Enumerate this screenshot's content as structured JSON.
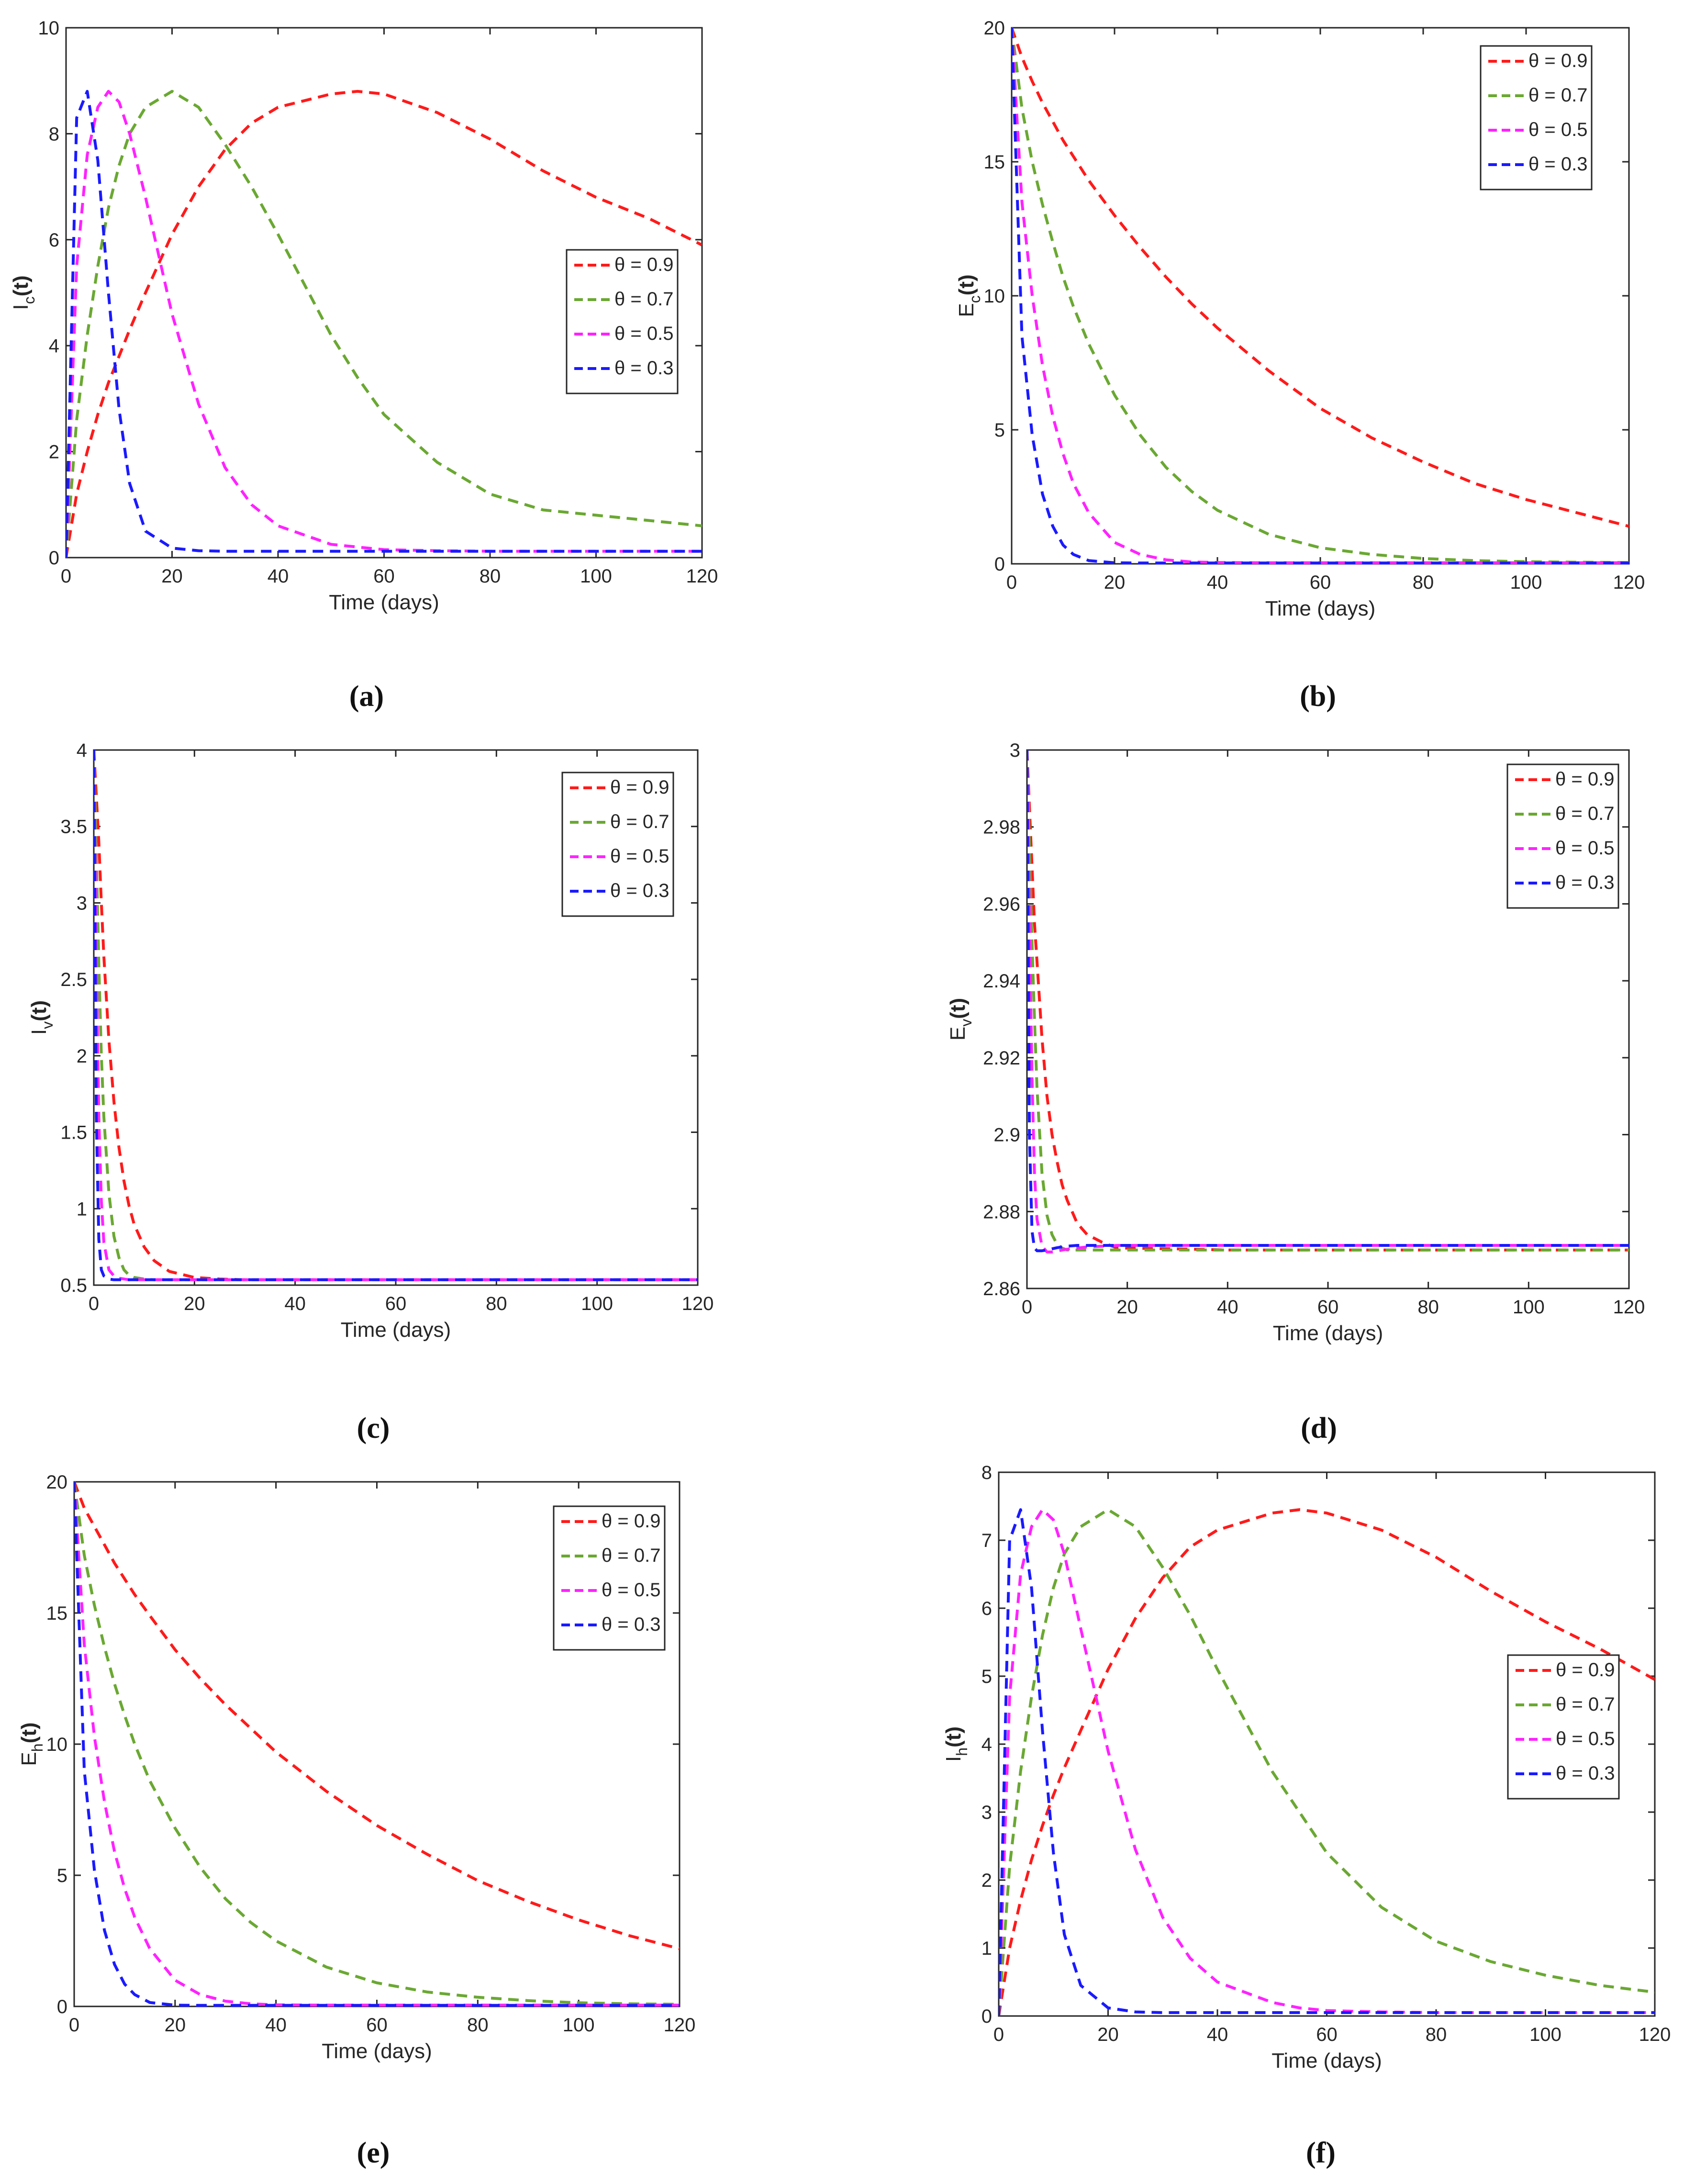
{
  "figure": {
    "panels_count": 6,
    "x_axis_label": "Time (days)",
    "legend_labels": [
      "θ = 0.9",
      "θ = 0.7",
      "θ = 0.5",
      "θ = 0.3"
    ],
    "series_colors": [
      "#ff1a1a",
      "#6aa832",
      "#ff22ff",
      "#1a1aff"
    ]
  },
  "chart_data": [
    {
      "type": "line",
      "panel": "a",
      "caption": "(a)",
      "ylabel_main": "I",
      "ylabel_sub": "c",
      "ylabel_tail": "(t)",
      "xlabel": "Time (days)",
      "xlim": [
        0,
        120
      ],
      "ylim": [
        0,
        10
      ],
      "xticks": [
        0,
        20,
        40,
        60,
        80,
        100,
        120
      ],
      "yticks": [
        0,
        2,
        4,
        6,
        8,
        10
      ],
      "legend_position": "right-middle",
      "x": [
        0,
        2,
        4,
        6,
        8,
        10,
        12,
        15,
        20,
        25,
        30,
        35,
        40,
        50,
        55,
        60,
        70,
        80,
        90,
        100,
        110,
        120
      ],
      "series": [
        {
          "name": "θ = 0.9",
          "color": "#ff1a1a",
          "values": [
            0,
            1.2,
            2.0,
            2.7,
            3.3,
            3.8,
            4.3,
            5.0,
            6.1,
            7.0,
            7.7,
            8.2,
            8.5,
            8.75,
            8.8,
            8.75,
            8.4,
            7.9,
            7.3,
            6.8,
            6.4,
            5.9
          ]
        },
        {
          "name": "θ = 0.7",
          "color": "#6aa832",
          "values": [
            0,
            2.6,
            4.2,
            5.5,
            6.6,
            7.4,
            8.0,
            8.5,
            8.8,
            8.5,
            7.8,
            7.0,
            6.1,
            4.2,
            3.4,
            2.7,
            1.8,
            1.2,
            0.9,
            0.8,
            0.7,
            0.6
          ]
        },
        {
          "name": "θ = 0.5",
          "color": "#ff22ff",
          "values": [
            0,
            5.5,
            7.6,
            8.5,
            8.8,
            8.6,
            8.0,
            6.8,
            4.6,
            2.9,
            1.7,
            1.0,
            0.6,
            0.25,
            0.2,
            0.15,
            0.13,
            0.12,
            0.12,
            0.12,
            0.12,
            0.12
          ]
        },
        {
          "name": "θ = 0.3",
          "color": "#1a1aff",
          "values": [
            0,
            8.3,
            8.8,
            7.5,
            5.0,
            2.8,
            1.4,
            0.5,
            0.18,
            0.13,
            0.12,
            0.12,
            0.12,
            0.12,
            0.12,
            0.12,
            0.12,
            0.12,
            0.12,
            0.12,
            0.12,
            0.12
          ]
        }
      ]
    },
    {
      "type": "line",
      "panel": "b",
      "caption": "(b)",
      "ylabel_main": "E",
      "ylabel_sub": "c",
      "ylabel_tail": "(t)",
      "xlabel": "Time (days)",
      "xlim": [
        0,
        120
      ],
      "ylim": [
        0,
        20
      ],
      "xticks": [
        0,
        20,
        40,
        60,
        80,
        100,
        120
      ],
      "yticks": [
        0,
        5,
        10,
        15,
        20
      ],
      "legend_position": "top-right",
      "x": [
        0,
        2,
        4,
        6,
        8,
        10,
        12,
        15,
        20,
        25,
        30,
        35,
        40,
        50,
        60,
        70,
        80,
        90,
        100,
        110,
        120
      ],
      "series": [
        {
          "name": "θ = 0.9",
          "color": "#ff1a1a",
          "values": [
            20,
            18.9,
            18.0,
            17.2,
            16.5,
            15.8,
            15.2,
            14.3,
            13.0,
            11.8,
            10.7,
            9.7,
            8.8,
            7.2,
            5.8,
            4.7,
            3.8,
            3.0,
            2.4,
            1.9,
            1.4
          ]
        },
        {
          "name": "θ = 0.7",
          "color": "#6aa832",
          "values": [
            20,
            17.0,
            15.0,
            13.4,
            12.0,
            10.7,
            9.6,
            8.2,
            6.3,
            4.8,
            3.6,
            2.7,
            2.0,
            1.1,
            0.6,
            0.35,
            0.2,
            0.12,
            0.08,
            0.06,
            0.05
          ]
        },
        {
          "name": "θ = 0.5",
          "color": "#ff22ff",
          "values": [
            20,
            13.5,
            10.0,
            7.4,
            5.5,
            4.1,
            3.0,
            1.9,
            0.8,
            0.35,
            0.15,
            0.07,
            0.05,
            0.04,
            0.04,
            0.04,
            0.04,
            0.04,
            0.04,
            0.04,
            0.04
          ]
        },
        {
          "name": "θ = 0.3",
          "color": "#1a1aff",
          "values": [
            20,
            8.5,
            4.8,
            2.6,
            1.4,
            0.7,
            0.35,
            0.12,
            0.04,
            0.03,
            0.03,
            0.03,
            0.03,
            0.03,
            0.03,
            0.03,
            0.03,
            0.03,
            0.03,
            0.03,
            0.03
          ]
        }
      ]
    },
    {
      "type": "line",
      "panel": "c",
      "caption": "(c)",
      "ylabel_main": "I",
      "ylabel_sub": "v",
      "ylabel_tail": "(t)",
      "xlabel": "Time (days)",
      "xlim": [
        0,
        120
      ],
      "ylim": [
        0.5,
        4
      ],
      "xticks": [
        0,
        20,
        40,
        60,
        80,
        100,
        120
      ],
      "yticks": [
        0.5,
        1,
        1.5,
        2,
        2.5,
        3,
        3.5,
        4
      ],
      "legend_position": "top-right",
      "x": [
        0,
        0.5,
        1,
        1.5,
        2,
        3,
        4,
        5,
        6,
        7,
        8,
        10,
        12,
        15,
        20,
        25,
        30,
        40,
        60,
        80,
        100,
        120
      ],
      "series": [
        {
          "name": "θ = 0.9",
          "color": "#ff1a1a",
          "values": [
            4.0,
            3.7,
            3.4,
            3.0,
            2.65,
            2.1,
            1.7,
            1.4,
            1.18,
            1.02,
            0.9,
            0.75,
            0.66,
            0.59,
            0.55,
            0.54,
            0.535,
            0.535,
            0.535,
            0.535,
            0.535,
            0.535
          ]
        },
        {
          "name": "θ = 0.7",
          "color": "#6aa832",
          "values": [
            4.0,
            3.3,
            2.6,
            2.0,
            1.6,
            1.1,
            0.82,
            0.68,
            0.6,
            0.565,
            0.55,
            0.54,
            0.535,
            0.535,
            0.535,
            0.535,
            0.535,
            0.535,
            0.535,
            0.535,
            0.535,
            0.535
          ]
        },
        {
          "name": "θ = 0.5",
          "color": "#ff22ff",
          "values": [
            4.0,
            2.6,
            1.6,
            1.05,
            0.78,
            0.6,
            0.56,
            0.545,
            0.54,
            0.535,
            0.535,
            0.535,
            0.535,
            0.535,
            0.535,
            0.535,
            0.535,
            0.535,
            0.535,
            0.535,
            0.535,
            0.535
          ]
        },
        {
          "name": "θ = 0.3",
          "color": "#1a1aff",
          "values": [
            4.0,
            1.6,
            0.8,
            0.6,
            0.56,
            0.54,
            0.535,
            0.535,
            0.535,
            0.535,
            0.535,
            0.535,
            0.535,
            0.535,
            0.535,
            0.535,
            0.535,
            0.535,
            0.535,
            0.535,
            0.535,
            0.535
          ]
        }
      ]
    },
    {
      "type": "line",
      "panel": "d",
      "caption": "(d)",
      "ylabel_main": "E",
      "ylabel_sub": "v",
      "ylabel_tail": "(t)",
      "xlabel": "Time (days)",
      "xlim": [
        0,
        120
      ],
      "ylim": [
        2.86,
        3
      ],
      "xticks": [
        0,
        20,
        40,
        60,
        80,
        100,
        120
      ],
      "yticks": [
        2.86,
        2.88,
        2.9,
        2.92,
        2.94,
        2.96,
        2.98,
        3
      ],
      "legend_position": "top-right",
      "x": [
        0,
        0.5,
        1,
        1.5,
        2,
        3,
        4,
        5,
        6,
        7,
        8,
        10,
        12,
        15,
        18,
        20,
        30,
        40,
        60,
        80,
        100,
        120
      ],
      "series": [
        {
          "name": "θ = 0.9",
          "color": "#ff1a1a",
          "values": [
            3.0,
            2.985,
            2.97,
            2.955,
            2.945,
            2.925,
            2.91,
            2.9,
            2.893,
            2.887,
            2.883,
            2.877,
            2.874,
            2.872,
            2.8705,
            2.8705,
            2.8703,
            2.87,
            2.87,
            2.87,
            2.87,
            2.87
          ]
        },
        {
          "name": "θ = 0.7",
          "color": "#6aa832",
          "values": [
            3.0,
            2.975,
            2.95,
            2.93,
            2.912,
            2.89,
            2.879,
            2.874,
            2.8715,
            2.8705,
            2.87,
            2.87,
            2.87,
            2.87,
            2.87,
            2.87,
            2.87,
            2.87,
            2.87,
            2.87,
            2.87,
            2.87
          ]
        },
        {
          "name": "θ = 0.5",
          "color": "#ff22ff",
          "values": [
            3.0,
            2.955,
            2.915,
            2.89,
            2.878,
            2.871,
            2.8695,
            2.8695,
            2.8697,
            2.87,
            2.8702,
            2.8705,
            2.8708,
            2.871,
            2.8712,
            2.8712,
            2.8712,
            2.8712,
            2.8712,
            2.8712,
            2.8712,
            2.8712
          ]
        },
        {
          "name": "θ = 0.3",
          "color": "#1a1aff",
          "values": [
            3.0,
            2.9,
            2.875,
            2.8705,
            2.8698,
            2.8698,
            2.87,
            2.8703,
            2.8706,
            2.8708,
            2.871,
            2.8712,
            2.8712,
            2.8712,
            2.8712,
            2.8712,
            2.8712,
            2.8712,
            2.8712,
            2.8712,
            2.8712,
            2.8712
          ]
        }
      ]
    },
    {
      "type": "line",
      "panel": "e",
      "caption": "(e)",
      "ylabel_main": "E",
      "ylabel_sub": "h",
      "ylabel_tail": "(t)",
      "xlabel": "Time (days)",
      "xlim": [
        0,
        120
      ],
      "ylim": [
        0,
        20
      ],
      "xticks": [
        0,
        20,
        40,
        60,
        80,
        100,
        120
      ],
      "yticks": [
        0,
        5,
        10,
        15,
        20
      ],
      "legend_position": "top-right",
      "x": [
        0,
        2,
        4,
        6,
        8,
        10,
        12,
        15,
        20,
        25,
        30,
        35,
        40,
        50,
        60,
        70,
        80,
        90,
        100,
        110,
        120
      ],
      "series": [
        {
          "name": "θ = 0.9",
          "color": "#ff1a1a",
          "values": [
            20,
            19.0,
            18.3,
            17.6,
            16.9,
            16.3,
            15.7,
            14.9,
            13.6,
            12.5,
            11.5,
            10.6,
            9.7,
            8.2,
            6.9,
            5.8,
            4.8,
            4.0,
            3.3,
            2.7,
            2.2
          ]
        },
        {
          "name": "θ = 0.7",
          "color": "#6aa832",
          "values": [
            20,
            17.2,
            15.3,
            13.7,
            12.3,
            11.1,
            10.0,
            8.6,
            6.8,
            5.3,
            4.1,
            3.2,
            2.5,
            1.5,
            0.9,
            0.55,
            0.35,
            0.22,
            0.14,
            0.1,
            0.08
          ]
        },
        {
          "name": "θ = 0.5",
          "color": "#ff22ff",
          "values": [
            20,
            13.8,
            10.3,
            7.8,
            5.9,
            4.5,
            3.4,
            2.2,
            1.0,
            0.45,
            0.2,
            0.1,
            0.06,
            0.05,
            0.05,
            0.05,
            0.05,
            0.05,
            0.05,
            0.05,
            0.05
          ]
        },
        {
          "name": "θ = 0.3",
          "color": "#1a1aff",
          "values": [
            20,
            9.0,
            5.2,
            2.9,
            1.6,
            0.85,
            0.45,
            0.15,
            0.05,
            0.04,
            0.04,
            0.04,
            0.04,
            0.04,
            0.04,
            0.04,
            0.04,
            0.04,
            0.04,
            0.04,
            0.04
          ]
        }
      ]
    },
    {
      "type": "line",
      "panel": "f",
      "caption": "(f)",
      "ylabel_main": "I",
      "ylabel_sub": "h",
      "ylabel_tail": "(t)",
      "xlabel": "Time (days)",
      "xlim": [
        0,
        120
      ],
      "ylim": [
        0,
        8
      ],
      "xticks": [
        0,
        20,
        40,
        60,
        80,
        100,
        120
      ],
      "yticks": [
        0,
        1,
        2,
        3,
        4,
        5,
        6,
        7,
        8
      ],
      "legend_position": "right-middle",
      "x": [
        0,
        2,
        4,
        6,
        8,
        10,
        12,
        15,
        20,
        25,
        30,
        35,
        40,
        50,
        55,
        60,
        70,
        80,
        90,
        100,
        110,
        120
      ],
      "series": [
        {
          "name": "θ = 0.9",
          "color": "#ff1a1a",
          "values": [
            0,
            1.0,
            1.7,
            2.3,
            2.8,
            3.25,
            3.65,
            4.2,
            5.1,
            5.85,
            6.45,
            6.9,
            7.15,
            7.4,
            7.45,
            7.4,
            7.15,
            6.75,
            6.25,
            5.8,
            5.4,
            4.95
          ]
        },
        {
          "name": "θ = 0.7",
          "color": "#6aa832",
          "values": [
            0,
            2.2,
            3.6,
            4.7,
            5.6,
            6.3,
            6.8,
            7.2,
            7.45,
            7.2,
            6.6,
            5.9,
            5.1,
            3.6,
            3.0,
            2.4,
            1.6,
            1.1,
            0.8,
            0.6,
            0.45,
            0.35
          ]
        },
        {
          "name": "θ = 0.5",
          "color": "#ff22ff",
          "values": [
            0,
            4.7,
            6.5,
            7.2,
            7.45,
            7.3,
            6.8,
            5.7,
            3.9,
            2.45,
            1.45,
            0.85,
            0.5,
            0.2,
            0.12,
            0.08,
            0.06,
            0.05,
            0.05,
            0.05,
            0.05,
            0.05
          ]
        },
        {
          "name": "θ = 0.3",
          "color": "#1a1aff",
          "values": [
            0,
            7.0,
            7.45,
            6.3,
            4.2,
            2.4,
            1.2,
            0.45,
            0.12,
            0.06,
            0.05,
            0.05,
            0.05,
            0.05,
            0.05,
            0.05,
            0.05,
            0.05,
            0.05,
            0.05,
            0.05,
            0.05
          ]
        }
      ]
    }
  ]
}
